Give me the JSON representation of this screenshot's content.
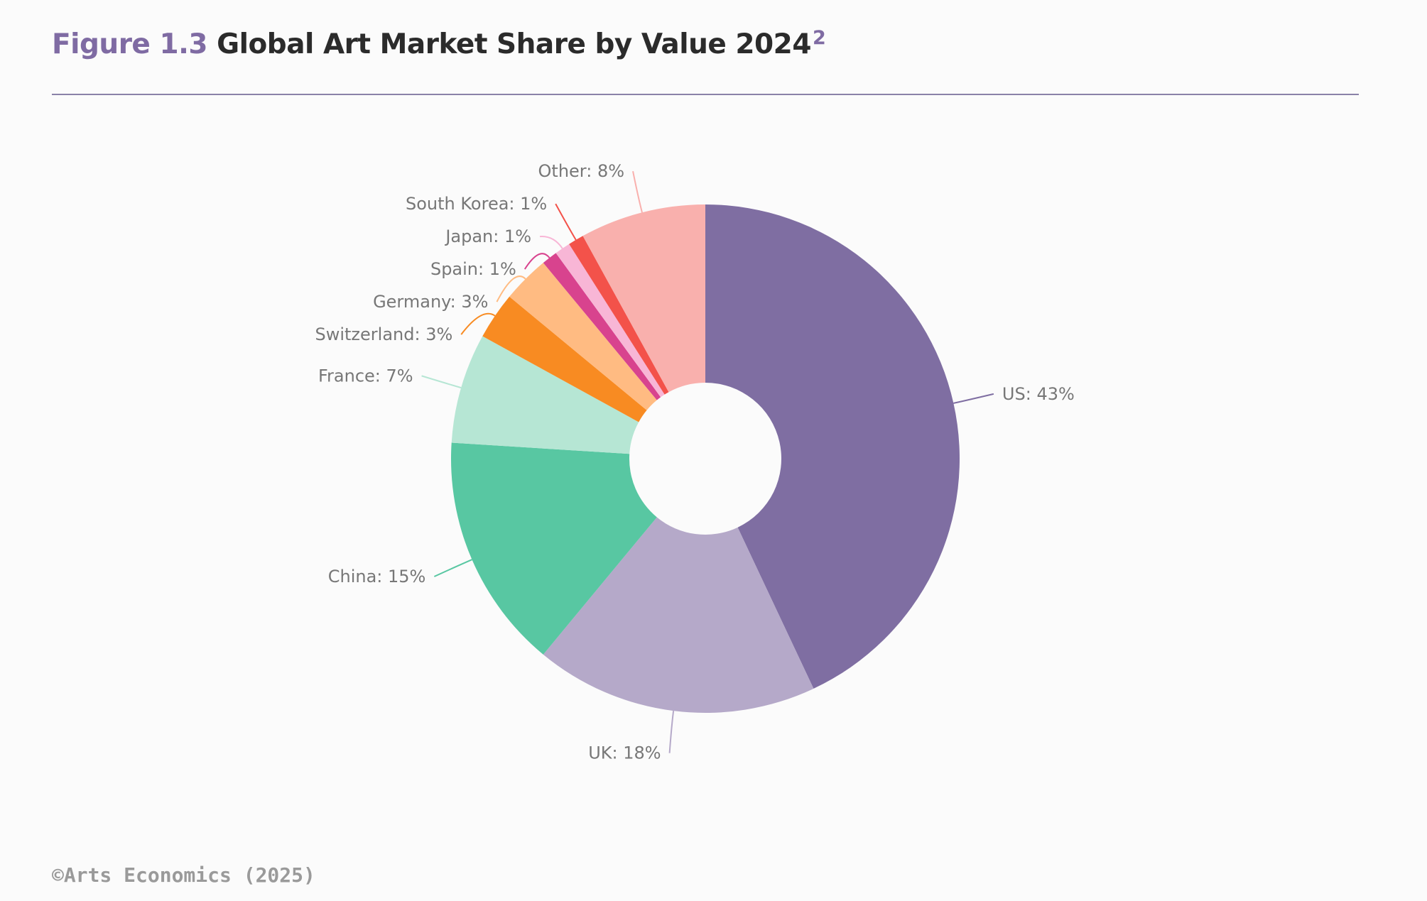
{
  "header": {
    "figure_number": "Figure 1.3",
    "title": "Global Art Market Share by Value 2024",
    "footnote_marker": "2"
  },
  "footer": {
    "copyright": "©Arts Economics (2025)"
  },
  "chart_data": {
    "type": "pie",
    "donut": true,
    "title": "Global Art Market Share by Value 2024",
    "slices": [
      {
        "name": "US",
        "value": 43,
        "label": "US: 43%",
        "color": "#7f6ea2"
      },
      {
        "name": "UK",
        "value": 18,
        "label": "UK: 18%",
        "color": "#b5a9c9"
      },
      {
        "name": "China",
        "value": 15,
        "label": "China: 15%",
        "color": "#58c7a2"
      },
      {
        "name": "France",
        "value": 7,
        "label": "France: 7%",
        "color": "#b6e6d4"
      },
      {
        "name": "Switzerland",
        "value": 3,
        "label": "Switzerland: 3%",
        "color": "#f88b22"
      },
      {
        "name": "Germany",
        "value": 3,
        "label": "Germany: 3%",
        "color": "#ffbb82"
      },
      {
        "name": "Spain",
        "value": 1,
        "label": "Spain: 1%",
        "color": "#d8438e"
      },
      {
        "name": "Japan",
        "value": 1,
        "label": "Japan: 1%",
        "color": "#f8b6d6"
      },
      {
        "name": "South Korea",
        "value": 1,
        "label": "South Korea: 1%",
        "color": "#f3524a"
      },
      {
        "name": "Other",
        "value": 8,
        "label": "Other: 8%",
        "color": "#f9b0ad"
      }
    ]
  }
}
